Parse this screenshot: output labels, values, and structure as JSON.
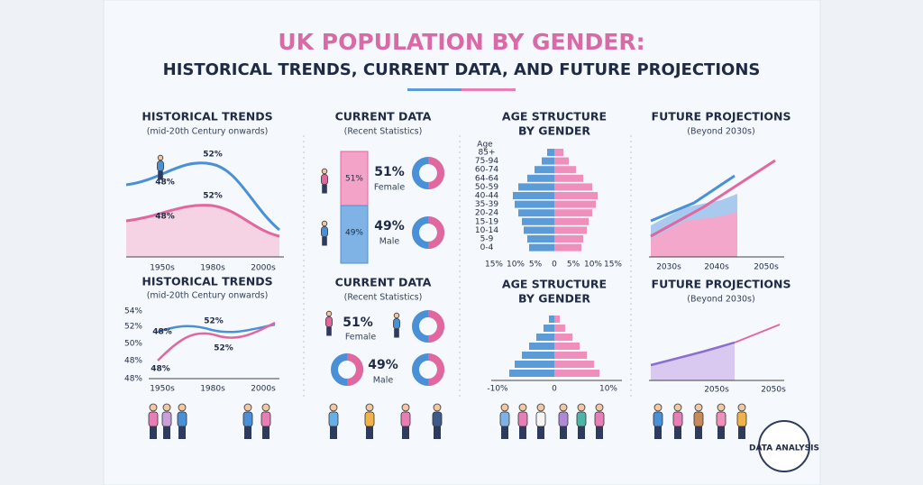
{
  "title": "UK POPULATION BY GENDER:",
  "subtitle": "HISTORICAL TRENDS, CURRENT DATA, AND FUTURE PROJECTIONS",
  "historical": [
    {
      "heading": "HISTORICAL TRENDS",
      "note": "(mid-20th Century onwards)",
      "labels": [
        "52%",
        "48%",
        "52%",
        "48%"
      ],
      "x": [
        "1950s",
        "1980s",
        "2000s"
      ]
    },
    {
      "heading": "HISTORICAL TRENDS",
      "note": "(mid-20th Century onwards)",
      "yticks": [
        "54%",
        "52%",
        "50%",
        "48%",
        "48%"
      ],
      "labels": [
        "48%",
        "52%",
        "52%",
        "48%"
      ],
      "x": [
        "1950s",
        "1980s",
        "2000s"
      ]
    }
  ],
  "current": [
    {
      "heading": "CURRENT DATA",
      "note": "(Recent Statistics)",
      "bar": [
        "51%",
        "49%"
      ],
      "female": "51%",
      "female_label": "Female",
      "male": "49%",
      "male_label": "Male"
    },
    {
      "heading": "CURRENT DATA",
      "note": "(Recent Statistics)",
      "female": "51%",
      "female_label": "Female",
      "male": "49%",
      "male_label": "Male"
    }
  ],
  "age": [
    {
      "heading": "AGE STRUCTURE",
      "subheading": "BY GENDER",
      "age_label": "Age",
      "groups": [
        "85+",
        "75-94",
        "60-74",
        "64-64",
        "50-59",
        "40-44",
        "35-39",
        "20-24",
        "15-19",
        "10-14",
        "5-9",
        "0-4"
      ],
      "x": [
        "15%",
        "10%",
        "5%",
        "0",
        "5%",
        "10%",
        "15%"
      ]
    },
    {
      "heading": "AGE STRUCTURE",
      "subheading": "BY GENDER",
      "x": [
        "-10%",
        "0",
        "10%"
      ]
    }
  ],
  "future": [
    {
      "heading": "FUTURE PROJECTIONS",
      "note": "(Beyond 2030s)",
      "x": [
        "2030s",
        "2040s",
        "2050s"
      ]
    },
    {
      "heading": "FUTURE PROJECTIONS",
      "note": "(Beyond 2030s)",
      "x": [
        "2050s",
        "2050s"
      ]
    }
  ],
  "badge": "DATA ANALYSIS"
}
